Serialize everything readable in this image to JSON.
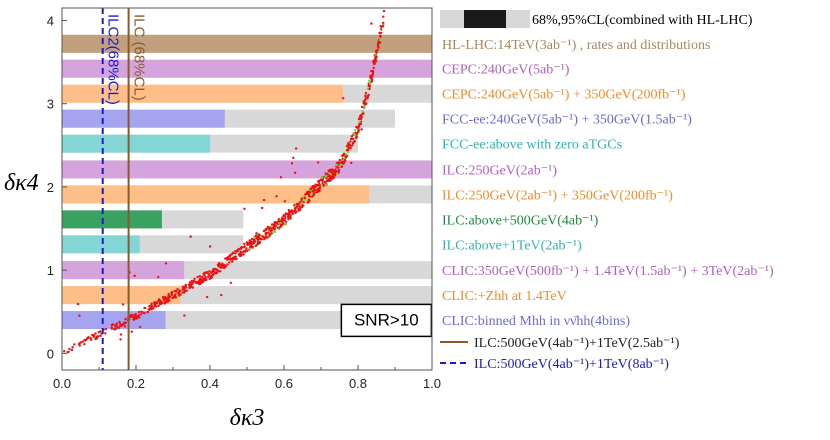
{
  "chart_data": {
    "type": "bar",
    "xlabel": "δκ3",
    "ylabel": "δκ4",
    "xlim": [
      0,
      1.0
    ],
    "ylim": [
      -0.2,
      4.15
    ],
    "x_ticks": [
      0.0,
      0.2,
      0.4,
      0.6,
      0.8,
      1.0
    ],
    "x_tick_labels": [
      "0.0",
      "0.2",
      "0.4",
      "0.6",
      "0.8",
      "1.0"
    ],
    "y_ticks": [
      0,
      1,
      2,
      3,
      4
    ],
    "y_tick_labels": [
      "0",
      "1",
      "2",
      "3",
      "4"
    ],
    "bars": [
      {
        "label": "HL-LHC:14TeV(3ab⁻¹) , rates and distributions",
        "y": 3.72,
        "cl68": 1.0,
        "cl95": 1.0,
        "color": "#c2a07e",
        "text_color": "#a9865f"
      },
      {
        "label": "CEPC:240GeV(5ab⁻¹)",
        "y": 3.42,
        "cl68": 1.0,
        "cl95": 1.0,
        "color": "#d5a4dc",
        "text_color": "#b15fbd"
      },
      {
        "label": "CEPC:240GeV(5ab⁻¹) + 350GeV(200fb⁻¹)",
        "y": 3.12,
        "cl68": 0.76,
        "cl95": 1.0,
        "color": "#fdbf87",
        "text_color": "#f08c2a"
      },
      {
        "label": "FCC-ee:240GeV(5ab⁻¹) + 350GeV(1.5ab⁻¹)",
        "y": 2.82,
        "cl68": 0.44,
        "cl95": 0.9,
        "color": "#a5a5ef",
        "text_color": "#6a6ad8"
      },
      {
        "label": "FCC-ee:above with zero aTGCs",
        "y": 2.52,
        "cl68": 0.4,
        "cl95": 0.8,
        "color": "#84d6d6",
        "text_color": "#2fb3b3"
      },
      {
        "label": "ILC:250GeV(2ab⁻¹)",
        "y": 2.21,
        "cl68": 1.0,
        "cl95": 1.0,
        "color": "#d5a4dc",
        "text_color": "#b15fbd"
      },
      {
        "label": "ILC:250GeV(2ab⁻¹) + 350GeV(200fb⁻¹)",
        "y": 1.91,
        "cl68": 0.83,
        "cl95": 1.0,
        "color": "#fdbf87",
        "text_color": "#f08c2a"
      },
      {
        "label": "ILC:above+500GeV(4ab⁻¹)",
        "y": 1.61,
        "cl68": 0.27,
        "cl95": 0.49,
        "color": "#3aa160",
        "text_color": "#1e8d3c"
      },
      {
        "label": "ILC:above+1TeV(2ab⁻¹)",
        "y": 1.31,
        "cl68": 0.21,
        "cl95": 0.49,
        "color": "#84d6d6",
        "text_color": "#2fb3b3"
      },
      {
        "label": "CLIC:350GeV(500fb⁻¹) + 1.4TeV(1.5ab⁻¹) + 3TeV(2ab⁻¹)",
        "y": 1.0,
        "cl68": 0.33,
        "cl95": 1.0,
        "color": "#d5a4dc",
        "text_color": "#b15fbd"
      },
      {
        "label": "CLIC:+Zhh at 1.4TeV",
        "y": 0.7,
        "cl68": 0.32,
        "cl95": 1.0,
        "color": "#fdbf87",
        "text_color": "#f08c2a"
      },
      {
        "label": "CLIC:binned Mhh in νν̄hh(4bins)",
        "y": 0.4,
        "cl68": 0.28,
        "cl95": 1.0,
        "color": "#a5a5ef",
        "text_color": "#6a6ad8"
      }
    ],
    "vertical_lines": [
      {
        "label": "ILC:500GeV(4ab⁻¹)+1TeV(2.5ab⁻¹)",
        "x": 0.18,
        "color": "#8a5a2b",
        "style": "solid",
        "rotated_label": "ILC (68%CL)"
      },
      {
        "label": "ILC:500GeV(4ab⁻¹)+1TeV(8ab⁻¹)",
        "x": 0.11,
        "color": "#1a1acc",
        "style": "dashed",
        "rotated_label": "ILC2(68%CL)"
      }
    ],
    "legend_header": "68%,95%CL(combined with HL-LHC)",
    "annotation": "SNR>10",
    "scatter_curve": {
      "description_points": [
        [
          0.0,
          0.0
        ],
        [
          0.2,
          0.45
        ],
        [
          0.4,
          0.95
        ],
        [
          0.6,
          1.6
        ],
        [
          0.75,
          2.25
        ],
        [
          0.8,
          2.7
        ],
        [
          0.83,
          3.2
        ],
        [
          0.85,
          3.6
        ],
        [
          0.87,
          4.05
        ]
      ]
    },
    "colors": {
      "red_points": "#ee1111",
      "green_points": "#66dd33",
      "gray_bar": "#d8d8d8",
      "dark_bar": "#1a1a1a"
    }
  }
}
